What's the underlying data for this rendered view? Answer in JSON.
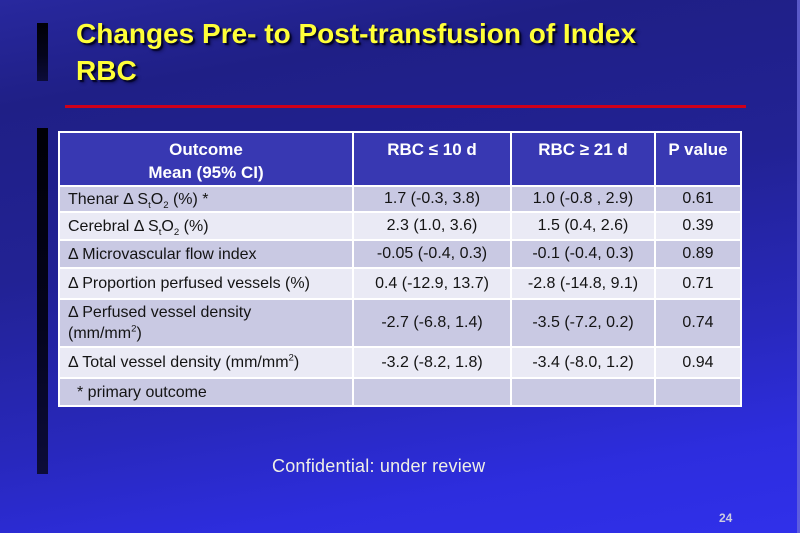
{
  "slide": {
    "title": {
      "line1": "Changes Pre- to Post-transfusion of Index",
      "line2": "RBC"
    },
    "footer": "Confidential: under review",
    "page_number": "24"
  },
  "colors": {
    "background_top": "#28289e",
    "background_bottom": "#3030ea",
    "title_yellow": "#ffff38",
    "divider_red": "#cf001a",
    "header_blue": "#3838b2",
    "row_shade_dark": "#c9c9e3",
    "row_shade_light": "#eaeaf5",
    "table_border": "#ffffff",
    "body_text": "#141414",
    "footer_text": "#efefe6"
  },
  "table": {
    "headers": {
      "col1_line1": "Outcome",
      "col1_line2": "Mean (95% CI)",
      "col2": "RBC ≤ 10 d",
      "col3": "RBC ≥ 21 d",
      "col4": "P value"
    },
    "rows": [
      {
        "label": [
          {
            "t": "Thenar Δ S"
          },
          {
            "t": "t",
            "style": "sub"
          },
          {
            "t": "O"
          },
          {
            "t": "2",
            "style": "sub"
          },
          {
            "t": " (%) *"
          }
        ],
        "values": [
          "1.7 (-0.3, 3.8)",
          "1.0 (-0.8 , 2.9)",
          "0.61"
        ]
      },
      {
        "label": [
          {
            "t": "Cerebral Δ S"
          },
          {
            "t": "t",
            "style": "sub"
          },
          {
            "t": "O"
          },
          {
            "t": "2",
            "style": "sub"
          },
          {
            "t": " (%)"
          }
        ],
        "values": [
          "2.3 (1.0, 3.6)",
          "1.5 (0.4, 2.6)",
          "0.39"
        ]
      },
      {
        "label": [
          {
            "t": "Δ Microvascular flow index"
          }
        ],
        "values": [
          "-0.05 (-0.4, 0.3)",
          "-0.1 (-0.4, 0.3)",
          "0.89"
        ]
      },
      {
        "label": [
          {
            "t": "Δ Proportion perfused vessels (%)"
          }
        ],
        "values": [
          "0.4 (-12.9, 13.7)",
          "-2.8 (-14.8, 9.1)",
          "0.71"
        ]
      },
      {
        "label": [
          {
            "t": "Δ Perfused vessel density"
          },
          {
            "style": "br"
          },
          {
            "t": "(mm/mm"
          },
          {
            "t": "2",
            "style": "sup"
          },
          {
            "t": ")"
          }
        ],
        "values": [
          "-2.7 (-6.8, 1.4)",
          "-3.5 (-7.2, 0.2)",
          "0.74"
        ]
      },
      {
        "label": [
          {
            "t": "Δ Total vessel density (mm/mm"
          },
          {
            "t": "2",
            "style": "sup"
          },
          {
            "t": ")"
          }
        ],
        "values": [
          "-3.2 (-8.2, 1.8)",
          "-3.4 (-8.0, 1.2)",
          "0.94"
        ]
      },
      {
        "label": [
          {
            "t": "* primary outcome"
          }
        ],
        "values": [
          "",
          "",
          ""
        ],
        "indent": true
      }
    ]
  }
}
